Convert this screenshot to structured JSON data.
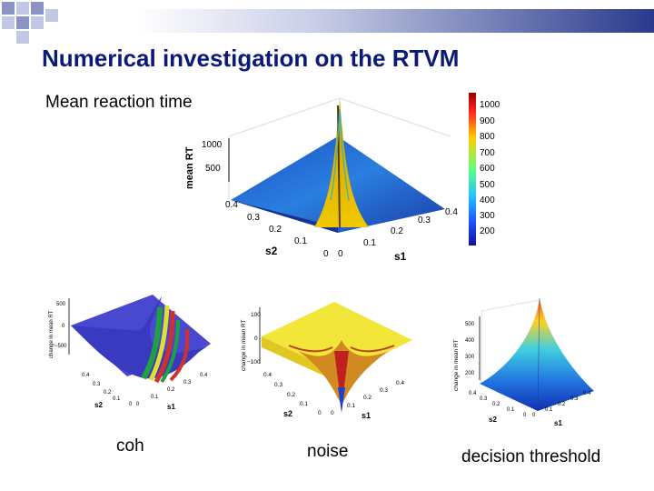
{
  "slide": {
    "title": "Numerical investigation on the RTVM",
    "subtitle": "Mean reaction time",
    "captions": [
      "coh",
      "noise",
      "decision threshold"
    ]
  },
  "colors": {
    "title": "#0a1a78",
    "header_gradient": [
      "#ffffff",
      "#2a3a8c"
    ],
    "deco_squares": "#8a94c4"
  },
  "main_plot": {
    "zlabel": "mean RT",
    "zticks": [
      "1000",
      "500"
    ],
    "s2_ticks": [
      "0.4",
      "0.3",
      "0.2",
      "0.1",
      "0"
    ],
    "s1_ticks": [
      "0",
      "0.1",
      "0.2",
      "0.3",
      "0.4"
    ],
    "xlabel_s2": "s2",
    "xlabel_s1": "s1",
    "colorbar_ticks": [
      "1000",
      "900",
      "800",
      "700",
      "600",
      "500",
      "400",
      "300",
      "200"
    ]
  },
  "small_plots": [
    {
      "zlabel": "change in mean RT",
      "zticks": [
        "500",
        "0",
        "−500"
      ],
      "s2_ticks": [
        "0.4",
        "0.3",
        "0.2",
        "0.1",
        "0"
      ],
      "s1_ticks": [
        "0",
        "0.1",
        "0.2",
        "0.3",
        "0.4"
      ],
      "xlabel_s2": "s2",
      "xlabel_s1": "s1"
    },
    {
      "zlabel": "change in mean RT",
      "zticks": [
        "100",
        "0",
        "−100"
      ],
      "s2_ticks": [
        "0.4",
        "0.3",
        "0.2",
        "0.1",
        "0"
      ],
      "s1_ticks": [
        "0",
        "0.1",
        "0.2",
        "0.3",
        "0.4"
      ],
      "xlabel_s2": "s2",
      "xlabel_s1": "s1"
    },
    {
      "zlabel": "change in mean RT",
      "zticks": [
        "500",
        "400",
        "300",
        "200"
      ],
      "s2_ticks": [
        "0.4",
        "0.3",
        "0.2",
        "0.1",
        "0"
      ],
      "s1_ticks": [
        "0",
        "0.1",
        "0.2",
        "0.3",
        "0.4"
      ],
      "xlabel_s2": "s2",
      "xlabel_s1": "s1"
    }
  ]
}
